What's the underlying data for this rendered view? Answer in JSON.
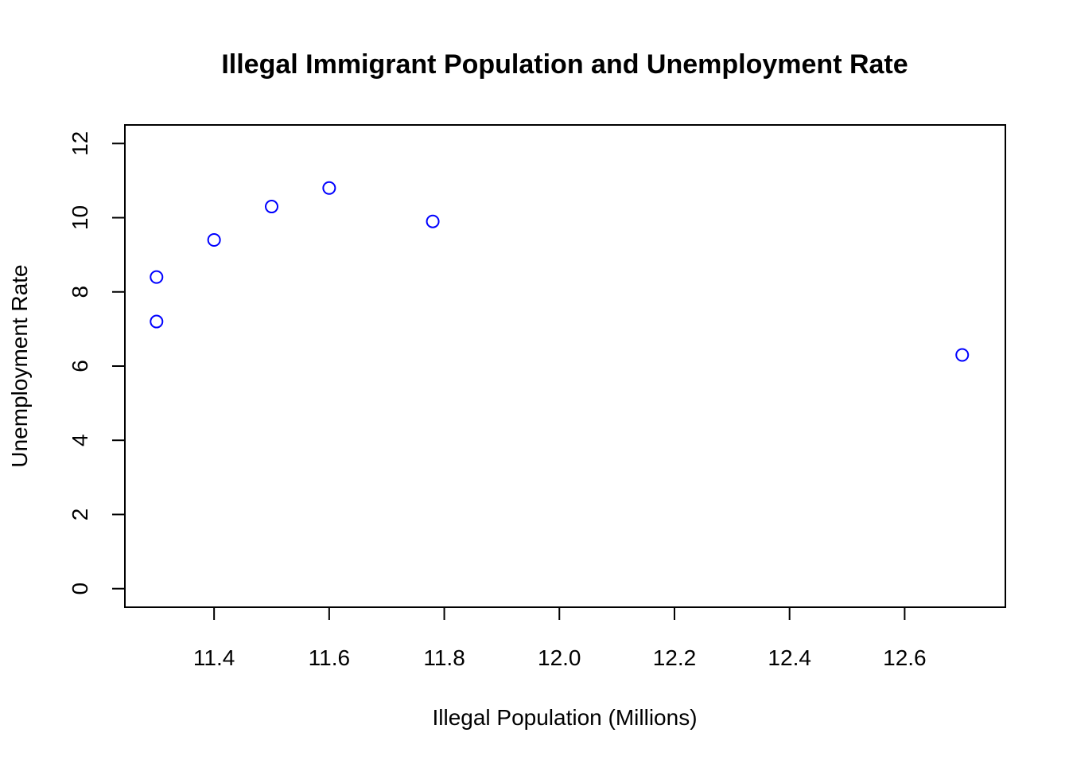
{
  "chart_data": {
    "type": "scatter",
    "title": "Illegal Immigrant Population and Unemployment Rate",
    "xlabel": "Illegal Population (Millions)",
    "ylabel": "Unemployment Rate",
    "xlim": [
      11.245,
      12.775
    ],
    "ylim": [
      -0.5,
      12.5
    ],
    "x_ticks": [
      11.4,
      11.6,
      11.8,
      12.0,
      12.2,
      12.4,
      12.6
    ],
    "x_tick_labels": [
      "11.4",
      "11.6",
      "11.8",
      "12.0",
      "12.2",
      "12.4",
      "12.6"
    ],
    "y_ticks": [
      0,
      2,
      4,
      6,
      8,
      10,
      12
    ],
    "y_tick_labels": [
      "0",
      "2",
      "4",
      "6",
      "8",
      "10",
      "12"
    ],
    "grid": false,
    "point_color": "#0000ff",
    "points": [
      {
        "x": 11.3,
        "y": 8.4
      },
      {
        "x": 11.3,
        "y": 7.2
      },
      {
        "x": 11.4,
        "y": 9.4
      },
      {
        "x": 11.5,
        "y": 10.3
      },
      {
        "x": 11.6,
        "y": 10.8
      },
      {
        "x": 11.78,
        "y": 9.9
      },
      {
        "x": 12.7,
        "y": 6.3
      }
    ]
  }
}
